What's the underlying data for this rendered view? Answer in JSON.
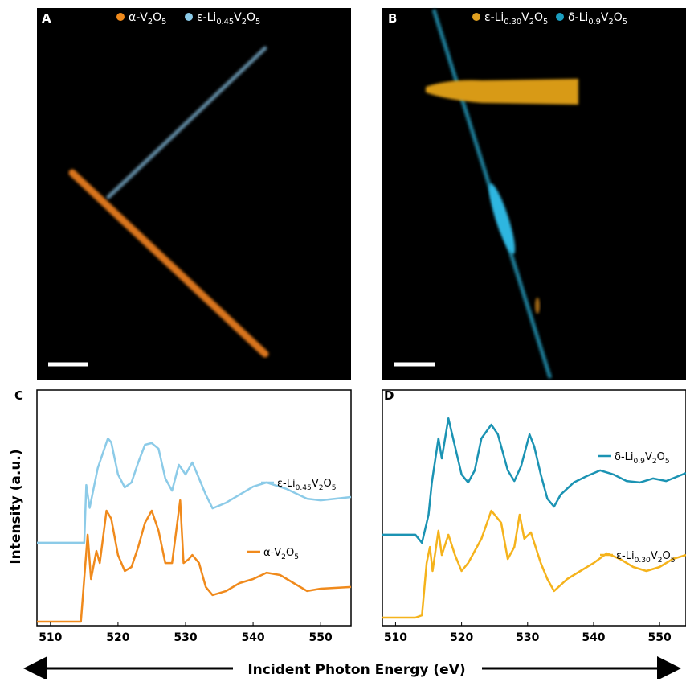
{
  "panels": [
    {
      "label": "A",
      "legend": [
        {
          "name": [
            "α-V",
            "2",
            "O",
            "5"
          ],
          "color": "#f08a1c"
        },
        {
          "name": [
            "ε-Li",
            "0.45",
            "V",
            "2",
            "O",
            "5"
          ],
          "color": "#8ccbe8"
        }
      ]
    },
    {
      "label": "B",
      "legend": [
        {
          "name": [
            "ε-Li",
            "0.30",
            "V",
            "2",
            "O",
            "5"
          ],
          "color": "#e0a020"
        },
        {
          "name": [
            "δ-Li",
            "0.9",
            "V",
            "2",
            "O",
            "5"
          ],
          "color": "#1b9ec0"
        }
      ]
    }
  ],
  "x_label": "Incident Photon Energy (eV)",
  "y_label": "Intensity (a.u.)",
  "chart_data": [
    {
      "type": "line",
      "label": "C",
      "xlim": [
        508,
        554.5
      ],
      "xticks": [
        510,
        520,
        530,
        540,
        550
      ],
      "ylim": [
        0,
        100
      ],
      "series": [
        {
          "name": [
            "ε-Li",
            "0.45",
            "V",
            "2",
            "O",
            "5"
          ],
          "color": "#8ccbe8",
          "x": [
            508,
            515,
            515.3,
            515.8,
            517,
            518.5,
            519,
            520,
            521,
            522,
            523,
            524,
            525,
            526,
            527,
            528,
            529,
            530,
            531,
            532,
            533,
            534,
            536,
            538,
            540,
            542,
            545,
            548,
            550,
            554.5
          ],
          "values": [
            35.2,
            35.2,
            59.7,
            50,
            66.9,
            79.5,
            77.8,
            64.2,
            58.7,
            60.8,
            69.3,
            76.8,
            77.5,
            75.1,
            62.5,
            57.3,
            68.3,
            64.2,
            69.3,
            62.5,
            55.6,
            49.8,
            52.2,
            55.6,
            59.0,
            60.8,
            58.0,
            53.9,
            53.2,
            54.6
          ]
        },
        {
          "name": [
            "α-V",
            "2",
            "O",
            "5"
          ],
          "color": "#f08a1c",
          "x": [
            508,
            514.5,
            515.5,
            516,
            516.8,
            517.3,
            518.3,
            519,
            520,
            521,
            522,
            523,
            524,
            525,
            526,
            527,
            528,
            529.2,
            529.7,
            530.5,
            531,
            532,
            533,
            534,
            536,
            538,
            540,
            542,
            544,
            546,
            548,
            550,
            554.5
          ],
          "values": [
            1.7,
            1.7,
            38.6,
            19.8,
            31.7,
            26.6,
            48.8,
            45.4,
            30,
            23.2,
            24.9,
            33.4,
            43.7,
            48.8,
            40.3,
            26.6,
            26.6,
            53.2,
            26.6,
            28.3,
            30,
            26.6,
            16.4,
            13,
            14.7,
            18.1,
            19.8,
            22.5,
            21.5,
            18.1,
            14.7,
            15.7,
            16.4
          ]
        }
      ]
    },
    {
      "type": "line",
      "label": "D",
      "xlim": [
        508,
        554
      ],
      "xticks": [
        510,
        520,
        530,
        540,
        550
      ],
      "ylim": [
        0,
        100
      ],
      "series": [
        {
          "name": [
            "δ-Li",
            "0.9",
            "V",
            "2",
            "O",
            "5"
          ],
          "color": "#1b93b3",
          "x": [
            508,
            513,
            514,
            515,
            515.5,
            516.5,
            517,
            518,
            519,
            520,
            521,
            522,
            523,
            524.5,
            525.5,
            527,
            528,
            529,
            530.3,
            531,
            532,
            533,
            534,
            535,
            537,
            539,
            541,
            543,
            545,
            547,
            549,
            551,
            554
          ],
          "values": [
            38.6,
            38.6,
            35.2,
            47.1,
            60.8,
            79.5,
            71,
            88,
            76.1,
            64.2,
            60.8,
            65.9,
            79.5,
            85.3,
            81.2,
            65.9,
            61.4,
            67.6,
            81.2,
            76.1,
            64.2,
            53.9,
            50.5,
            55.6,
            60.8,
            63.5,
            65.9,
            64.2,
            61.4,
            60.8,
            62.5,
            61.4,
            64.8
          ]
        },
        {
          "name": [
            "ε-Li",
            "0.30",
            "V",
            "2",
            "O",
            "5"
          ],
          "color": "#f5b31c",
          "x": [
            508,
            513,
            514,
            514.7,
            515.2,
            515.6,
            516.5,
            517,
            518,
            519,
            520,
            521,
            523,
            524.5,
            526,
            527,
            528,
            528.8,
            529.5,
            530.5,
            532,
            533,
            534,
            536,
            538,
            540,
            542,
            544,
            546,
            548,
            550,
            552,
            554
          ],
          "values": [
            3.4,
            3.4,
            4.4,
            26.6,
            33.4,
            23.2,
            40.3,
            30,
            38.6,
            30,
            23.2,
            26.6,
            36.9,
            48.8,
            43.7,
            28.3,
            33.4,
            47.1,
            36.9,
            39.6,
            26.6,
            19.8,
            14.7,
            19.8,
            23.2,
            26.6,
            30.7,
            28.3,
            24.9,
            23.2,
            24.9,
            28.3,
            30
          ]
        }
      ]
    }
  ]
}
